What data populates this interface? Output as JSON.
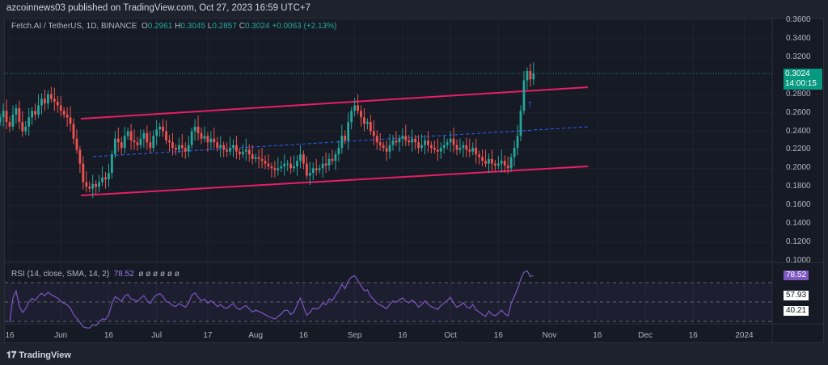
{
  "header": {
    "title": "azcoinnews03 published on TradingView.com, Oct 27, 2023 16:59 UTC+7"
  },
  "legend": {
    "symbol": "Fetch.AI / TetherUS, 1D, BINANCE",
    "o_label": "O",
    "o": "0.2961",
    "h_label": "H",
    "h": "0.3045",
    "l_label": "L",
    "l": "0.2857",
    "c_label": "C",
    "c": "0.3024",
    "change": "+0.0063 (+2.13%)"
  },
  "price_badge": {
    "price": "0.3024",
    "countdown": "14:00:15"
  },
  "rsi": {
    "label": "RSI (14, close, SMA, 14, 2)",
    "value": "78.52",
    "extra": "ø ø ø ø ø ø",
    "badges": [
      "78.52",
      "57.93",
      "40.21"
    ]
  },
  "footer": {
    "brand": "TradingView"
  },
  "colors": {
    "up": "#26a69a",
    "down": "#ef5350",
    "channel": "#e91e63",
    "mid": "#2962ff",
    "rsi": "#7e57c2"
  },
  "chart_data": {
    "type": "candlestick",
    "title": "Fetch.AI / TetherUS, 1D, BINANCE",
    "start_date": "2023-05-13",
    "y_ticks": [
      "0.3600",
      "0.3400",
      "0.3200",
      "0.2800",
      "0.2600",
      "0.2400",
      "0.2200",
      "0.2000",
      "0.1800",
      "0.1600",
      "0.1400",
      "0.1200",
      "0.1000"
    ],
    "ylim": [
      0.1,
      0.36
    ],
    "x_ticks": [
      {
        "label": "16",
        "day": 3
      },
      {
        "label": "Jun",
        "day": 19
      },
      {
        "label": "16",
        "day": 34
      },
      {
        "label": "Jul",
        "day": 49
      },
      {
        "label": "17",
        "day": 65
      },
      {
        "label": "Aug",
        "day": 80
      },
      {
        "label": "16",
        "day": 95
      },
      {
        "label": "Sep",
        "day": 111
      },
      {
        "label": "16",
        "day": 126
      },
      {
        "label": "Oct",
        "day": 141
      },
      {
        "label": "16",
        "day": 156
      },
      {
        "label": "Nov",
        "day": 172
      },
      {
        "label": "16",
        "day": 187
      },
      {
        "label": "Dec",
        "day": 202
      },
      {
        "label": "16",
        "day": 217
      },
      {
        "label": "2024",
        "day": 233
      }
    ],
    "closes": [
      0.255,
      0.262,
      0.25,
      0.245,
      0.258,
      0.265,
      0.25,
      0.24,
      0.245,
      0.255,
      0.262,
      0.258,
      0.268,
      0.275,
      0.27,
      0.28,
      0.275,
      0.272,
      0.268,
      0.262,
      0.258,
      0.255,
      0.248,
      0.232,
      0.22,
      0.205,
      0.185,
      0.18,
      0.178,
      0.183,
      0.18,
      0.185,
      0.19,
      0.188,
      0.195,
      0.215,
      0.232,
      0.228,
      0.222,
      0.235,
      0.24,
      0.23,
      0.228,
      0.225,
      0.232,
      0.238,
      0.228,
      0.222,
      0.235,
      0.242,
      0.245,
      0.24,
      0.23,
      0.228,
      0.222,
      0.22,
      0.225,
      0.222,
      0.218,
      0.225,
      0.24,
      0.245,
      0.238,
      0.232,
      0.235,
      0.228,
      0.232,
      0.228,
      0.222,
      0.225,
      0.22,
      0.218,
      0.222,
      0.225,
      0.218,
      0.215,
      0.218,
      0.22,
      0.215,
      0.21,
      0.212,
      0.21,
      0.208,
      0.205,
      0.202,
      0.2,
      0.198,
      0.2,
      0.202,
      0.205,
      0.205,
      0.2,
      0.202,
      0.208,
      0.215,
      0.205,
      0.192,
      0.195,
      0.2,
      0.198,
      0.2,
      0.205,
      0.203,
      0.21,
      0.208,
      0.215,
      0.222,
      0.235,
      0.23,
      0.25,
      0.262,
      0.268,
      0.262,
      0.255,
      0.248,
      0.25,
      0.24,
      0.235,
      0.228,
      0.225,
      0.222,
      0.218,
      0.225,
      0.23,
      0.228,
      0.232,
      0.235,
      0.23,
      0.228,
      0.232,
      0.228,
      0.222,
      0.225,
      0.23,
      0.225,
      0.222,
      0.22,
      0.218,
      0.222,
      0.225,
      0.228,
      0.232,
      0.225,
      0.22,
      0.222,
      0.225,
      0.22,
      0.218,
      0.222,
      0.215,
      0.212,
      0.208,
      0.205,
      0.21,
      0.205,
      0.203,
      0.205,
      0.208,
      0.203,
      0.2,
      0.212,
      0.222,
      0.235,
      0.262,
      0.295,
      0.305,
      0.296,
      0.3024
    ],
    "rsi_levels": [
      70,
      50,
      30
    ]
  }
}
